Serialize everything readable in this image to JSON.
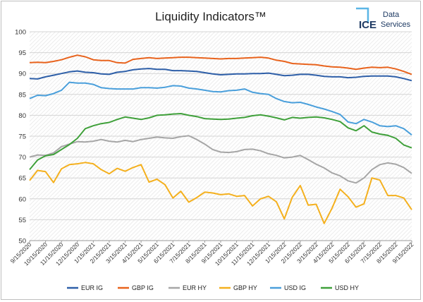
{
  "chart_data": {
    "type": "line",
    "title": "Liquidity Indicators™",
    "xlabel": "",
    "ylabel": "",
    "ylim": [
      50,
      100
    ],
    "yticks": [
      50,
      55,
      60,
      65,
      70,
      75,
      80,
      85,
      90,
      95,
      100
    ],
    "grid": "horizontal",
    "legend_position": "bottom",
    "x_tick_labels": [
      "9/15/2020",
      "10/15/2020",
      "11/15/2020",
      "12/15/2020",
      "1/15/2021",
      "2/15/2021",
      "3/15/2021",
      "4/15/2021",
      "5/15/2021",
      "6/15/2021",
      "7/15/2021",
      "8/15/2021",
      "9/15/2021",
      "10/15/2021",
      "11/15/2021",
      "12/15/2021",
      "1/15/2022",
      "2/15/2022",
      "3/15/2022",
      "4/15/2022",
      "5/15/2022",
      "6/15/2022",
      "7/15/2022",
      "8/15/2022",
      "9/15/2022"
    ],
    "series": [
      {
        "name": "EUR IG",
        "color": "#2e5fa8",
        "points": [
          [
            0,
            88.8
          ],
          [
            0.5,
            88.7
          ],
          [
            1,
            89.2
          ],
          [
            1.5,
            89.6
          ],
          [
            2,
            90.0
          ],
          [
            2.5,
            90.4
          ],
          [
            3,
            90.6
          ],
          [
            3.5,
            90.3
          ],
          [
            4,
            90.2
          ],
          [
            4.5,
            89.9
          ],
          [
            5,
            89.8
          ],
          [
            5.5,
            90.3
          ],
          [
            6,
            90.5
          ],
          [
            6.5,
            90.9
          ],
          [
            7,
            91.1
          ],
          [
            7.5,
            91.2
          ],
          [
            8,
            91.0
          ],
          [
            8.5,
            91.0
          ],
          [
            9,
            90.7
          ],
          [
            9.5,
            90.7
          ],
          [
            10,
            90.6
          ],
          [
            10.5,
            90.5
          ],
          [
            11,
            90.2
          ],
          [
            11.5,
            89.9
          ],
          [
            12,
            89.7
          ],
          [
            12.5,
            89.8
          ],
          [
            13,
            89.9
          ],
          [
            13.5,
            89.9
          ],
          [
            14,
            90.0
          ],
          [
            14.5,
            90.0
          ],
          [
            15,
            90.1
          ],
          [
            15.5,
            89.8
          ],
          [
            16,
            89.5
          ],
          [
            16.5,
            89.6
          ],
          [
            17,
            89.8
          ],
          [
            17.5,
            89.8
          ],
          [
            18,
            89.6
          ],
          [
            18.5,
            89.3
          ],
          [
            19,
            89.2
          ],
          [
            19.5,
            89.2
          ],
          [
            20,
            89.0
          ],
          [
            20.5,
            89.1
          ],
          [
            21,
            89.3
          ],
          [
            21.5,
            89.4
          ],
          [
            22,
            89.4
          ],
          [
            22.5,
            89.4
          ],
          [
            23,
            89.2
          ],
          [
            23.5,
            88.8
          ],
          [
            24,
            88.3
          ]
        ]
      },
      {
        "name": "GBP IG",
        "color": "#e8631d",
        "points": [
          [
            0,
            92.6
          ],
          [
            0.5,
            92.7
          ],
          [
            1,
            92.6
          ],
          [
            1.5,
            92.9
          ],
          [
            2,
            93.3
          ],
          [
            2.5,
            93.9
          ],
          [
            3,
            94.4
          ],
          [
            3.5,
            94.0
          ],
          [
            4,
            93.3
          ],
          [
            4.5,
            93.1
          ],
          [
            5,
            93.1
          ],
          [
            5.5,
            92.6
          ],
          [
            6,
            92.5
          ],
          [
            6.5,
            93.4
          ],
          [
            7,
            93.6
          ],
          [
            7.5,
            93.8
          ],
          [
            8,
            93.6
          ],
          [
            8.5,
            93.7
          ],
          [
            9,
            93.8
          ],
          [
            9.5,
            93.9
          ],
          [
            10,
            93.9
          ],
          [
            10.5,
            93.8
          ],
          [
            11,
            93.7
          ],
          [
            11.5,
            93.6
          ],
          [
            12,
            93.5
          ],
          [
            12.5,
            93.6
          ],
          [
            13,
            93.6
          ],
          [
            13.5,
            93.7
          ],
          [
            14,
            93.8
          ],
          [
            14.5,
            93.9
          ],
          [
            15,
            93.7
          ],
          [
            15.5,
            93.2
          ],
          [
            16,
            92.9
          ],
          [
            16.5,
            92.4
          ],
          [
            17,
            92.3
          ],
          [
            17.5,
            92.2
          ],
          [
            18,
            92.1
          ],
          [
            18.5,
            91.8
          ],
          [
            19,
            91.6
          ],
          [
            19.5,
            91.5
          ],
          [
            20,
            91.3
          ],
          [
            20.5,
            91.0
          ],
          [
            21,
            91.3
          ],
          [
            21.5,
            91.5
          ],
          [
            22,
            91.4
          ],
          [
            22.5,
            91.5
          ],
          [
            23,
            91.1
          ],
          [
            23.5,
            90.5
          ],
          [
            24,
            89.8
          ]
        ]
      },
      {
        "name": "EUR HY",
        "color": "#a6a6a6",
        "points": [
          [
            0,
            70.0
          ],
          [
            0.5,
            70.5
          ],
          [
            1,
            70.4
          ],
          [
            1.5,
            71.0
          ],
          [
            2,
            72.5
          ],
          [
            2.5,
            73.1
          ],
          [
            3,
            73.7
          ],
          [
            3.5,
            73.6
          ],
          [
            4,
            73.8
          ],
          [
            4.5,
            74.2
          ],
          [
            5,
            73.8
          ],
          [
            5.5,
            73.6
          ],
          [
            6,
            74.0
          ],
          [
            6.5,
            73.7
          ],
          [
            7,
            74.2
          ],
          [
            7.5,
            74.5
          ],
          [
            8,
            74.8
          ],
          [
            8.5,
            74.6
          ],
          [
            9,
            74.5
          ],
          [
            9.5,
            74.9
          ],
          [
            10,
            75.1
          ],
          [
            10.5,
            74.2
          ],
          [
            11,
            73.1
          ],
          [
            11.5,
            71.8
          ],
          [
            12,
            71.2
          ],
          [
            12.5,
            71.1
          ],
          [
            13,
            71.3
          ],
          [
            13.5,
            71.8
          ],
          [
            14,
            71.9
          ],
          [
            14.5,
            71.5
          ],
          [
            15,
            70.8
          ],
          [
            15.5,
            70.4
          ],
          [
            16,
            69.8
          ],
          [
            16.5,
            70.0
          ],
          [
            17,
            70.4
          ],
          [
            17.5,
            69.4
          ],
          [
            18,
            68.3
          ],
          [
            18.5,
            67.4
          ],
          [
            19,
            66.2
          ],
          [
            19.5,
            65.5
          ],
          [
            20,
            64.3
          ],
          [
            20.5,
            63.8
          ],
          [
            21,
            65.0
          ],
          [
            21.5,
            67.0
          ],
          [
            22,
            68.2
          ],
          [
            22.5,
            68.6
          ],
          [
            23,
            68.3
          ],
          [
            23.5,
            67.5
          ],
          [
            24,
            66.1
          ]
        ]
      },
      {
        "name": "GBP HY",
        "color": "#f4b01e",
        "points": [
          [
            0,
            64.4
          ],
          [
            0.5,
            66.8
          ],
          [
            1,
            66.5
          ],
          [
            1.5,
            63.9
          ],
          [
            2,
            67.2
          ],
          [
            2.5,
            68.2
          ],
          [
            3,
            68.4
          ],
          [
            3.5,
            68.7
          ],
          [
            4,
            68.4
          ],
          [
            4.5,
            67.0
          ],
          [
            5,
            66.0
          ],
          [
            5.5,
            67.3
          ],
          [
            6,
            66.6
          ],
          [
            6.5,
            67.5
          ],
          [
            7,
            68.2
          ],
          [
            7.5,
            64.0
          ],
          [
            8,
            64.7
          ],
          [
            8.5,
            63.4
          ],
          [
            9,
            60.2
          ],
          [
            9.5,
            61.8
          ],
          [
            10,
            59.2
          ],
          [
            10.5,
            60.3
          ],
          [
            11,
            61.6
          ],
          [
            11.5,
            61.4
          ],
          [
            12,
            61.0
          ],
          [
            12.5,
            61.2
          ],
          [
            13,
            60.6
          ],
          [
            13.5,
            60.8
          ],
          [
            14,
            58.3
          ],
          [
            14.5,
            60.0
          ],
          [
            15,
            60.6
          ],
          [
            15.5,
            59.3
          ],
          [
            16,
            55.2
          ],
          [
            16.5,
            60.4
          ],
          [
            17,
            63.2
          ],
          [
            17.5,
            58.5
          ],
          [
            18,
            58.7
          ],
          [
            18.5,
            54.1
          ],
          [
            19,
            57.8
          ],
          [
            19.5,
            62.3
          ],
          [
            20,
            60.5
          ],
          [
            20.5,
            58.0
          ],
          [
            21,
            58.8
          ],
          [
            21.5,
            65.0
          ],
          [
            22,
            64.5
          ],
          [
            22.5,
            60.8
          ],
          [
            23,
            60.8
          ],
          [
            23.5,
            60.2
          ],
          [
            24,
            57.4
          ]
        ]
      },
      {
        "name": "USD IG",
        "color": "#4a9fdb",
        "points": [
          [
            0,
            84.0
          ],
          [
            0.5,
            84.8
          ],
          [
            1,
            84.7
          ],
          [
            1.5,
            85.2
          ],
          [
            2,
            86.0
          ],
          [
            2.5,
            87.9
          ],
          [
            3,
            87.7
          ],
          [
            3.5,
            87.7
          ],
          [
            4,
            87.4
          ],
          [
            4.5,
            86.6
          ],
          [
            5,
            86.4
          ],
          [
            5.5,
            86.3
          ],
          [
            6,
            86.3
          ],
          [
            6.5,
            86.3
          ],
          [
            7,
            86.6
          ],
          [
            7.5,
            86.6
          ],
          [
            8,
            86.5
          ],
          [
            8.5,
            86.7
          ],
          [
            9,
            87.1
          ],
          [
            9.5,
            87.0
          ],
          [
            10,
            86.5
          ],
          [
            10.5,
            86.3
          ],
          [
            11,
            86.0
          ],
          [
            11.5,
            85.7
          ],
          [
            12,
            85.6
          ],
          [
            12.5,
            85.9
          ],
          [
            13,
            86.0
          ],
          [
            13.5,
            86.3
          ],
          [
            14,
            85.5
          ],
          [
            14.5,
            85.2
          ],
          [
            15,
            85.0
          ],
          [
            15.5,
            84.0
          ],
          [
            16,
            83.3
          ],
          [
            16.5,
            83.0
          ],
          [
            17,
            83.1
          ],
          [
            17.5,
            82.6
          ],
          [
            18,
            82.0
          ],
          [
            18.5,
            81.5
          ],
          [
            19,
            80.9
          ],
          [
            19.5,
            80.2
          ],
          [
            20,
            78.4
          ],
          [
            20.5,
            78.0
          ],
          [
            21,
            79.0
          ],
          [
            21.5,
            78.4
          ],
          [
            22,
            77.5
          ],
          [
            22.5,
            77.3
          ],
          [
            23,
            77.5
          ],
          [
            23.5,
            76.8
          ],
          [
            24,
            75.3
          ]
        ]
      },
      {
        "name": "USD HY",
        "color": "#3fa03a",
        "points": [
          [
            0,
            67.0
          ],
          [
            0.5,
            69.3
          ],
          [
            1,
            70.3
          ],
          [
            1.5,
            70.6
          ],
          [
            2,
            71.8
          ],
          [
            2.5,
            73.0
          ],
          [
            3,
            74.5
          ],
          [
            3.5,
            76.8
          ],
          [
            4,
            77.5
          ],
          [
            4.5,
            78.0
          ],
          [
            5,
            78.3
          ],
          [
            5.5,
            79.0
          ],
          [
            6,
            79.6
          ],
          [
            6.5,
            79.3
          ],
          [
            7,
            79.0
          ],
          [
            7.5,
            79.4
          ],
          [
            8,
            80.0
          ],
          [
            8.5,
            80.1
          ],
          [
            9,
            80.3
          ],
          [
            9.5,
            80.4
          ],
          [
            10,
            80.0
          ],
          [
            10.5,
            79.7
          ],
          [
            11,
            79.2
          ],
          [
            11.5,
            79.1
          ],
          [
            12,
            79.0
          ],
          [
            12.5,
            79.1
          ],
          [
            13,
            79.3
          ],
          [
            13.5,
            79.5
          ],
          [
            14,
            79.9
          ],
          [
            14.5,
            80.1
          ],
          [
            15,
            79.8
          ],
          [
            15.5,
            79.4
          ],
          [
            16,
            78.9
          ],
          [
            16.5,
            79.5
          ],
          [
            17,
            79.3
          ],
          [
            17.5,
            79.5
          ],
          [
            18,
            79.6
          ],
          [
            18.5,
            79.4
          ],
          [
            19,
            79.0
          ],
          [
            19.5,
            78.5
          ],
          [
            20,
            77.0
          ],
          [
            20.5,
            76.3
          ],
          [
            21,
            77.5
          ],
          [
            21.5,
            76.0
          ],
          [
            22,
            75.5
          ],
          [
            22.5,
            75.2
          ],
          [
            23,
            74.5
          ],
          [
            23.5,
            72.9
          ],
          [
            24,
            72.2
          ]
        ]
      }
    ]
  },
  "logo": {
    "ice": "ICE",
    "line1": "Data",
    "line2": "Services",
    "color": "#1e3a63",
    "accent": "#5bb6e6"
  }
}
